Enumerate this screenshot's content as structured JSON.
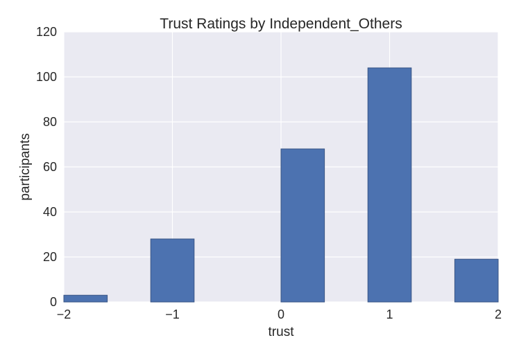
{
  "chart_data": {
    "type": "bar",
    "title": "Trust Ratings by Independent_Others",
    "xlabel": "trust",
    "ylabel": "participants",
    "xlim": [
      -2,
      2
    ],
    "ylim": [
      0,
      120
    ],
    "xticks": [
      "−2",
      "−1",
      "0",
      "1",
      "2"
    ],
    "yticks": [
      "0",
      "20",
      "40",
      "60",
      "80",
      "100",
      "120"
    ],
    "bins": [
      {
        "x0": -2.0,
        "x1": -1.6,
        "value": 3
      },
      {
        "x0": -1.2,
        "x1": -0.8,
        "value": 28
      },
      {
        "x0": 0.0,
        "x1": 0.4,
        "value": 68
      },
      {
        "x0": 0.8,
        "x1": 1.2,
        "value": 104
      },
      {
        "x0": 1.6,
        "x1": 2.0,
        "value": 19
      }
    ],
    "grid": true,
    "colors": {
      "plot_background": "#eaeaf2",
      "grid": "#ffffff",
      "bar_fill": "#4c72b0",
      "bar_edge": "#3a5585"
    }
  }
}
